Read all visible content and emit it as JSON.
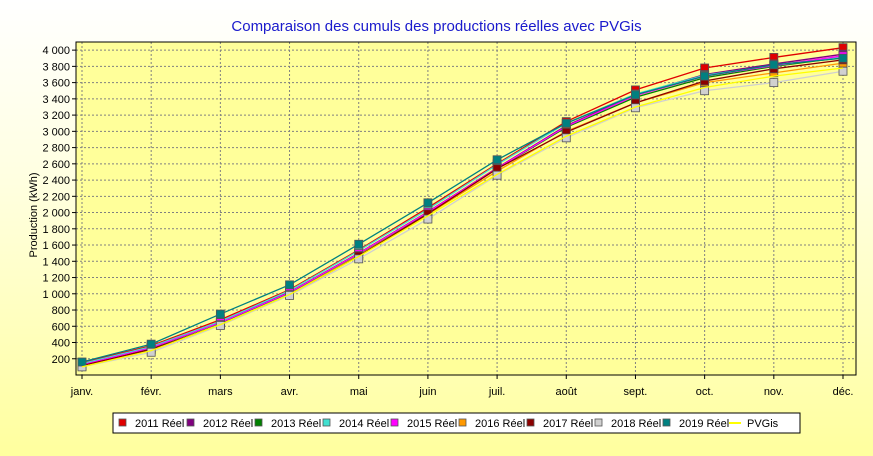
{
  "chart_data": {
    "type": "line",
    "title": "Comparaison des cumuls des productions réelles avec PVGis",
    "xlabel": "",
    "ylabel": "Production (kWh)",
    "ylim": [
      0,
      4100
    ],
    "grid": true,
    "legend_position": "bottom",
    "categories": [
      "janv.",
      "févr.",
      "mars",
      "avr.",
      "mai",
      "juin",
      "juil.",
      "août",
      "sept.",
      "oct.",
      "nov.",
      "déc."
    ],
    "y_ticks": [
      "200",
      "400",
      "600",
      "800",
      "1 000",
      "1 200",
      "1 400",
      "1 600",
      "1 800",
      "2 000",
      "2 200",
      "2 400",
      "2 600",
      "2 800",
      "3 000",
      "3 200",
      "3 400",
      "3 600",
      "3 800",
      "4 000"
    ],
    "y_tick_values": [
      200,
      400,
      600,
      800,
      1000,
      1200,
      1400,
      1600,
      1800,
      2000,
      2200,
      2400,
      2600,
      2800,
      3000,
      3200,
      3400,
      3600,
      3800,
      4000
    ],
    "series": [
      {
        "name": "2011 Réel",
        "color": "#e00000",
        "values": [
          150,
          360,
          680,
          1050,
          1540,
          2060,
          2600,
          3120,
          3510,
          3780,
          3910,
          4030
        ]
      },
      {
        "name": "2012 Réel",
        "color": "#800080",
        "values": [
          130,
          340,
          650,
          1020,
          1500,
          2010,
          2550,
          3070,
          3450,
          3700,
          3830,
          3950
        ]
      },
      {
        "name": "2013 Réel",
        "color": "#008000",
        "values": [
          120,
          330,
          640,
          1010,
          1490,
          2000,
          2540,
          3050,
          3420,
          3660,
          3800,
          3910
        ]
      },
      {
        "name": "2014 Réel",
        "color": "#40e0d0",
        "values": [
          140,
          350,
          660,
          1040,
          1530,
          2040,
          2590,
          3100,
          3460,
          3690,
          3810,
          3920
        ]
      },
      {
        "name": "2015 Réel",
        "color": "#ff00ff",
        "values": [
          125,
          335,
          645,
          1015,
          1495,
          2005,
          2545,
          3060,
          3440,
          3680,
          3810,
          3930
        ]
      },
      {
        "name": "2016 Réel",
        "color": "#ff9900",
        "values": [
          110,
          310,
          620,
          990,
          1470,
          1980,
          2510,
          3000,
          3350,
          3600,
          3720,
          3840
        ]
      },
      {
        "name": "2017 Réel",
        "color": "#8b0000",
        "values": [
          115,
          315,
          615,
          985,
          1465,
          1985,
          2540,
          2990,
          3350,
          3620,
          3770,
          3880
        ]
      },
      {
        "name": "2018 Réel",
        "color": "#d0d0d0",
        "values": [
          100,
          280,
          610,
          980,
          1430,
          1920,
          2460,
          2920,
          3290,
          3500,
          3600,
          3740
        ]
      },
      {
        "name": "2019 Réel",
        "color": "#008080",
        "values": [
          160,
          380,
          750,
          1110,
          1610,
          2120,
          2650,
          3100,
          3450,
          3680,
          3820,
          3900
        ]
      },
      {
        "name": "PVGis",
        "color": "#ffff00",
        "values": [
          100,
          300,
          620,
          990,
          1460,
          1960,
          2470,
          2940,
          3300,
          3540,
          3680,
          3780
        ]
      }
    ]
  }
}
